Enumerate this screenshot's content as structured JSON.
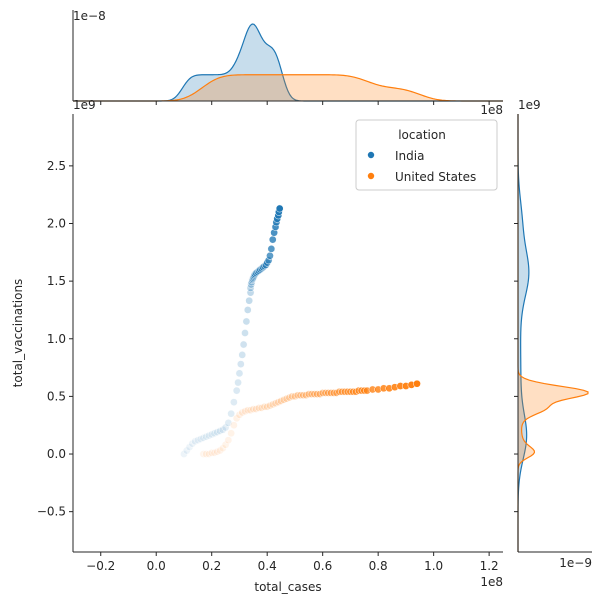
{
  "chart_data": {
    "type": "scatter",
    "subtype": "jointplot with marginal KDE",
    "xlabel": "total_cases",
    "ylabel": "total_vaccinations",
    "x_offset_label": "1e8",
    "y_offset_label": "1e9",
    "top_marginal_offset_label": "1e−8",
    "right_marginal_offset_label": "1e−9",
    "marginal_x_offset_label": "1e8",
    "marginal_y_offset_label": "1e9",
    "xlim": [
      -0.3,
      1.25
    ],
    "ylim": [
      -0.85,
      2.95
    ],
    "xticks": [
      -0.2,
      0.0,
      0.2,
      0.4,
      0.6,
      0.8,
      1.0,
      1.2
    ],
    "xtick_labels": [
      "−0.2",
      "0.0",
      "0.2",
      "0.4",
      "0.6",
      "0.8",
      "1.0",
      "1.2"
    ],
    "yticks": [
      -0.5,
      0.0,
      0.5,
      1.0,
      1.5,
      2.0,
      2.5
    ],
    "ytick_labels": [
      "−0.5",
      "0.0",
      "0.5",
      "1.0",
      "1.5",
      "2.0",
      "2.5"
    ],
    "legend": {
      "title": "location",
      "placement": "upper right",
      "entries": [
        "India",
        "United States"
      ]
    },
    "series": [
      {
        "name": "India",
        "color": "#1f77b4",
        "x": [
          0.1,
          0.11,
          0.12,
          0.13,
          0.14,
          0.15,
          0.16,
          0.17,
          0.18,
          0.19,
          0.2,
          0.21,
          0.22,
          0.23,
          0.24,
          0.25,
          0.26,
          0.27,
          0.28,
          0.29,
          0.295,
          0.3,
          0.305,
          0.31,
          0.315,
          0.32,
          0.325,
          0.33,
          0.335,
          0.34,
          0.34,
          0.342,
          0.344,
          0.346,
          0.348,
          0.35,
          0.352,
          0.354,
          0.356,
          0.36,
          0.365,
          0.37,
          0.375,
          0.38,
          0.385,
          0.39,
          0.395,
          0.4,
          0.405,
          0.41,
          0.415,
          0.42,
          0.425,
          0.43,
          0.433,
          0.436,
          0.44,
          0.442,
          0.445
        ],
        "y": [
          0.0,
          0.03,
          0.06,
          0.09,
          0.11,
          0.12,
          0.13,
          0.14,
          0.15,
          0.16,
          0.17,
          0.18,
          0.19,
          0.2,
          0.21,
          0.23,
          0.27,
          0.35,
          0.45,
          0.55,
          0.62,
          0.7,
          0.78,
          0.86,
          0.95,
          1.05,
          1.15,
          1.25,
          1.33,
          1.4,
          1.44,
          1.47,
          1.49,
          1.51,
          1.52,
          1.53,
          1.54,
          1.55,
          1.56,
          1.57,
          1.58,
          1.59,
          1.6,
          1.61,
          1.62,
          1.63,
          1.64,
          1.66,
          1.68,
          1.72,
          1.78,
          1.86,
          1.92,
          1.97,
          2.01,
          2.04,
          2.07,
          2.1,
          2.13
        ]
      },
      {
        "name": "United States",
        "color": "#ff7f0e",
        "x": [
          0.17,
          0.18,
          0.19,
          0.2,
          0.21,
          0.22,
          0.23,
          0.24,
          0.25,
          0.26,
          0.27,
          0.28,
          0.29,
          0.3,
          0.31,
          0.32,
          0.33,
          0.34,
          0.35,
          0.36,
          0.37,
          0.38,
          0.39,
          0.4,
          0.41,
          0.42,
          0.43,
          0.44,
          0.45,
          0.46,
          0.47,
          0.48,
          0.49,
          0.5,
          0.51,
          0.52,
          0.53,
          0.54,
          0.55,
          0.56,
          0.57,
          0.58,
          0.59,
          0.6,
          0.61,
          0.62,
          0.63,
          0.64,
          0.65,
          0.66,
          0.67,
          0.68,
          0.69,
          0.7,
          0.71,
          0.72,
          0.73,
          0.74,
          0.75,
          0.76,
          0.78,
          0.8,
          0.82,
          0.84,
          0.86,
          0.88,
          0.9,
          0.92,
          0.94
        ],
        "y": [
          0.0,
          0.0,
          0.0,
          0.01,
          0.01,
          0.02,
          0.03,
          0.05,
          0.08,
          0.12,
          0.18,
          0.25,
          0.31,
          0.34,
          0.36,
          0.37,
          0.38,
          0.38,
          0.39,
          0.39,
          0.4,
          0.4,
          0.41,
          0.41,
          0.42,
          0.43,
          0.44,
          0.45,
          0.46,
          0.47,
          0.48,
          0.49,
          0.5,
          0.5,
          0.51,
          0.51,
          0.51,
          0.51,
          0.52,
          0.52,
          0.52,
          0.52,
          0.52,
          0.53,
          0.53,
          0.53,
          0.53,
          0.53,
          0.53,
          0.54,
          0.54,
          0.54,
          0.54,
          0.54,
          0.54,
          0.54,
          0.55,
          0.55,
          0.55,
          0.55,
          0.56,
          0.56,
          0.57,
          0.57,
          0.58,
          0.59,
          0.59,
          0.6,
          0.61
        ]
      }
    ],
    "grid": false,
    "marginals": {
      "top": "KDE of total_cases by location (filled)",
      "right": "KDE of total_vaccinations by location (filled)"
    }
  }
}
